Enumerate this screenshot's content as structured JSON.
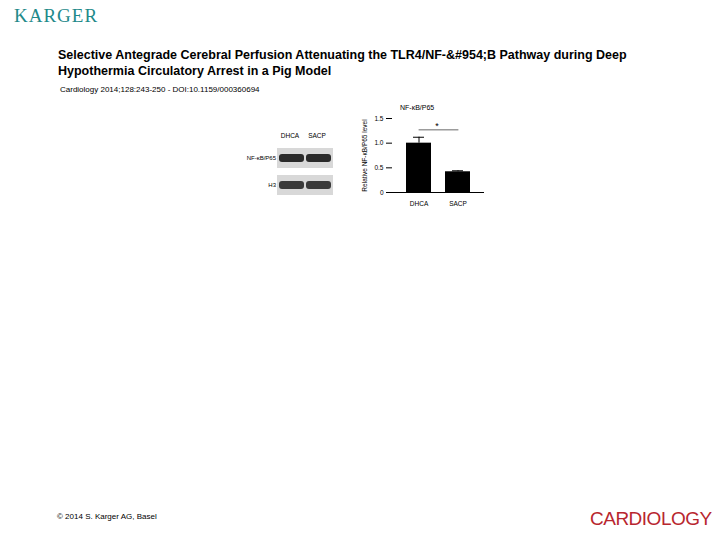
{
  "header": {
    "logo": "KARGER",
    "title": "Selective Antegrade Cerebral Perfusion Attenuating the TLR4/NF-&#954;B Pathway during Deep Hypothermia Circulatory Arrest in a Pig Model",
    "citation": "Cardiology 2014;128:243-250 - DOI:10.1159/000360694"
  },
  "blot": {
    "lanes": [
      "DHCA",
      "SACP"
    ],
    "rows": [
      "NF-κB/P65",
      "H3"
    ]
  },
  "footer": {
    "copyright": "© 2014 S. Karger AG, Basel",
    "journal": "CARDIOLOGY"
  },
  "chart_data": {
    "type": "bar",
    "title": "NF-κB/P65",
    "y_label": "Relative NF-κB/P65 level",
    "categories": [
      "DHCA",
      "SACP"
    ],
    "values": [
      1.0,
      0.42
    ],
    "errors": [
      0.12,
      0.02
    ],
    "color": "#000000",
    "ylim": [
      0,
      1.5
    ],
    "yticks": [
      0,
      0.5,
      {
        "value": 1,
        "label": "1.0"
      },
      1.5
    ],
    "annotations": [
      "*"
    ]
  }
}
